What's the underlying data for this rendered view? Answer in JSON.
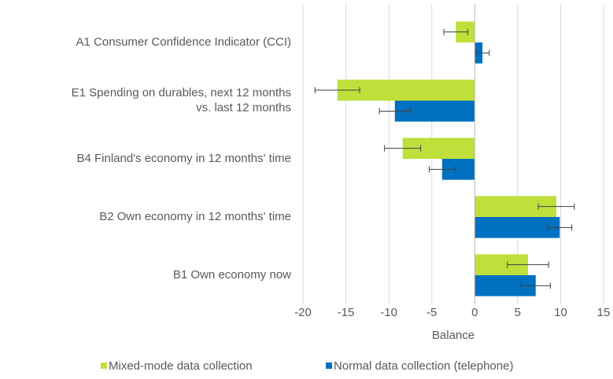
{
  "chart_data": {
    "type": "bar",
    "orientation": "horizontal",
    "categories": [
      "A1 Consumer Confidence Indicator (CCI)",
      "E1 Spending on durables, next 12 months\nvs. last 12 months",
      "B4 Finland's economy in 12 months' time",
      "B2 Own economy in 12 months' time",
      "B1 Own economy now"
    ],
    "series": [
      {
        "name": "Mixed-mode data collection",
        "color": "#bfdf3b",
        "values": [
          -2.2,
          -16.0,
          -8.4,
          9.5,
          6.2
        ],
        "errors": [
          1.4,
          2.6,
          2.1,
          2.1,
          2.4
        ]
      },
      {
        "name": "Normal data collection (telephone)",
        "color": "#0070c0",
        "values": [
          0.9,
          -9.3,
          -3.8,
          9.9,
          7.1
        ],
        "errors": [
          0.8,
          1.8,
          1.5,
          1.4,
          1.7
        ]
      }
    ],
    "xlabel": "Balance",
    "xlim": [
      -20,
      15
    ],
    "xticks": [
      -20,
      -15,
      -10,
      -5,
      0,
      5,
      10,
      15
    ],
    "grid": true,
    "legend": "bottom"
  }
}
